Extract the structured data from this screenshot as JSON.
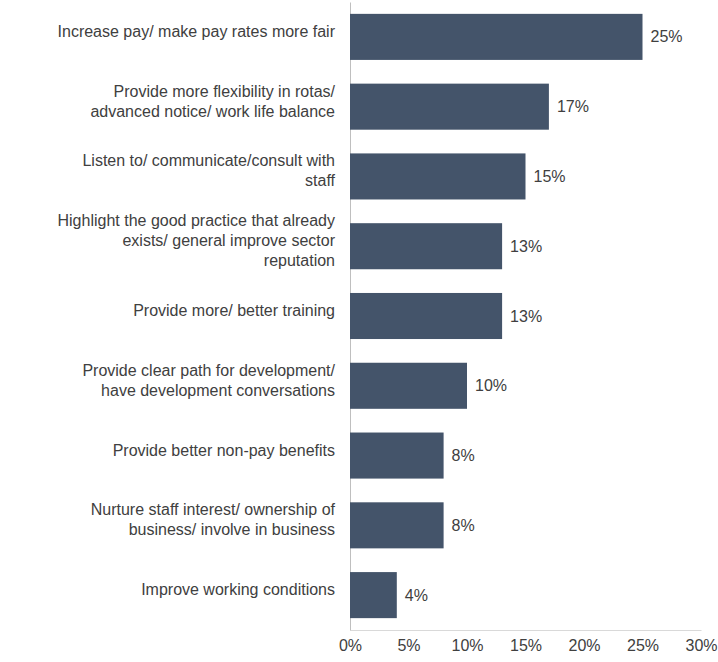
{
  "chart_data": {
    "type": "bar",
    "orientation": "horizontal",
    "categories": [
      "Increase pay/ make pay rates more fair",
      "Provide more flexibility in rotas/\nadvanced notice/ work life balance",
      "Listen to/ communicate/consult with\nstaff",
      "Highlight the good practice that already\nexists/ general improve sector\nreputation",
      "Provide more/ better training",
      "Provide clear path for development/\nhave development conversations",
      "Provide better non-pay benefits",
      "Nurture staff interest/ ownership of\nbusiness/ involve in business",
      "Improve working conditions"
    ],
    "values": [
      25,
      17,
      15,
      13,
      13,
      10,
      8,
      8,
      4
    ],
    "value_labels": [
      "25%",
      "17%",
      "15%",
      "13%",
      "13%",
      "10%",
      "8%",
      "8%",
      "4%"
    ],
    "data_labels": true,
    "color": "#44546a",
    "xlim": [
      0,
      30
    ],
    "xticks": [
      {
        "value": 0,
        "label": "0%"
      },
      {
        "value": 5,
        "label": "5%"
      },
      {
        "value": 10,
        "label": "10%"
      },
      {
        "value": 15,
        "label": "15%"
      },
      {
        "value": 20,
        "label": "20%"
      },
      {
        "value": 25,
        "label": "25%"
      },
      {
        "value": 30,
        "label": "30%"
      }
    ],
    "grid": false
  }
}
